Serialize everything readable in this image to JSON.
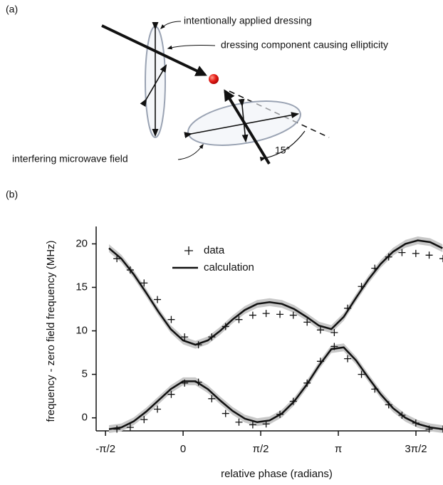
{
  "panel_a": {
    "label": "(a)",
    "annotations": [
      "intentionally applied dressing",
      "dressing component causing ellipticity",
      "interfering microwave field"
    ],
    "angle": "15°"
  },
  "panel_b": {
    "label": "(b)"
  },
  "chart_data": {
    "type": "line",
    "x_label": "relative phase (radians)",
    "y_label": "frequency - zero field frequency (MHz)",
    "xlim": [
      -1.76,
      5.26
    ],
    "ylim": [
      -1.5,
      22
    ],
    "xticks": [
      {
        "value": -1.5708,
        "label": "-π/2"
      },
      0,
      {
        "value": 1.5708,
        "label": "π/2"
      },
      {
        "value": 3.1416,
        "label": "π"
      },
      {
        "value": 4.7124,
        "label": "3π/2"
      }
    ],
    "yticks": [
      0,
      5,
      10,
      15,
      20
    ],
    "series": [
      {
        "name": "data",
        "marker": "plus",
        "color": "#111",
        "x": [
          -1.34,
          -1.07,
          -0.79,
          -0.52,
          -0.24,
          0.03,
          0.31,
          0.58,
          0.86,
          1.13,
          1.41,
          1.68,
          1.96,
          2.23,
          2.51,
          2.78,
          3.06,
          3.33,
          3.61,
          3.88,
          4.16,
          4.43,
          4.71,
          4.98,
          5.26
        ],
        "branches": [
          [
            18.3,
            17.0,
            15.5,
            13.6,
            11.3,
            9.3,
            8.4,
            9.3,
            10.5,
            11.3,
            11.8,
            12.0,
            11.9,
            11.8,
            11.0,
            10.1,
            9.8,
            12.6,
            15.1,
            17.2,
            18.5,
            19.0,
            18.9,
            18.7,
            18.3
          ],
          [
            -1.3,
            -1.1,
            -0.2,
            1.0,
            2.7,
            4.0,
            4.1,
            2.2,
            0.5,
            -0.5,
            -0.8,
            -0.7,
            0.4,
            1.9,
            4.0,
            6.5,
            8.2,
            6.8,
            5.0,
            3.3,
            1.5,
            0.3,
            -0.6,
            -1.3,
            -1.3
          ]
        ]
      },
      {
        "name": "calculation",
        "marker": "line",
        "color": "#111",
        "band_color": "#c8c8c8",
        "band": 0.45,
        "x": [
          -1.5,
          -1.25,
          -1.0,
          -0.75,
          -0.5,
          -0.25,
          0,
          0.25,
          0.5,
          0.75,
          1.0,
          1.25,
          1.5,
          1.75,
          2.0,
          2.25,
          2.5,
          2.75,
          3.0,
          3.25,
          3.5,
          3.75,
          4.0,
          4.25,
          4.5,
          4.75,
          5.0,
          5.25
        ],
        "branches": [
          [
            19.5,
            18.3,
            16.5,
            14.4,
            12.2,
            10.2,
            8.9,
            8.4,
            8.9,
            10.0,
            11.3,
            12.4,
            13.1,
            13.3,
            13.1,
            12.5,
            11.6,
            10.6,
            10.2,
            11.6,
            13.8,
            15.9,
            17.7,
            19.1,
            20.0,
            20.4,
            20.2,
            19.5
          ],
          [
            -1.3,
            -1.1,
            -0.4,
            0.7,
            2.0,
            3.3,
            4.2,
            4.2,
            3.3,
            2.0,
            0.8,
            -0.1,
            -0.5,
            -0.3,
            0.5,
            1.9,
            3.8,
            6.0,
            7.9,
            8.1,
            6.6,
            4.6,
            2.7,
            1.1,
            0.0,
            -0.7,
            -1.1,
            -1.3
          ]
        ]
      }
    ],
    "legend": "upper-center"
  }
}
